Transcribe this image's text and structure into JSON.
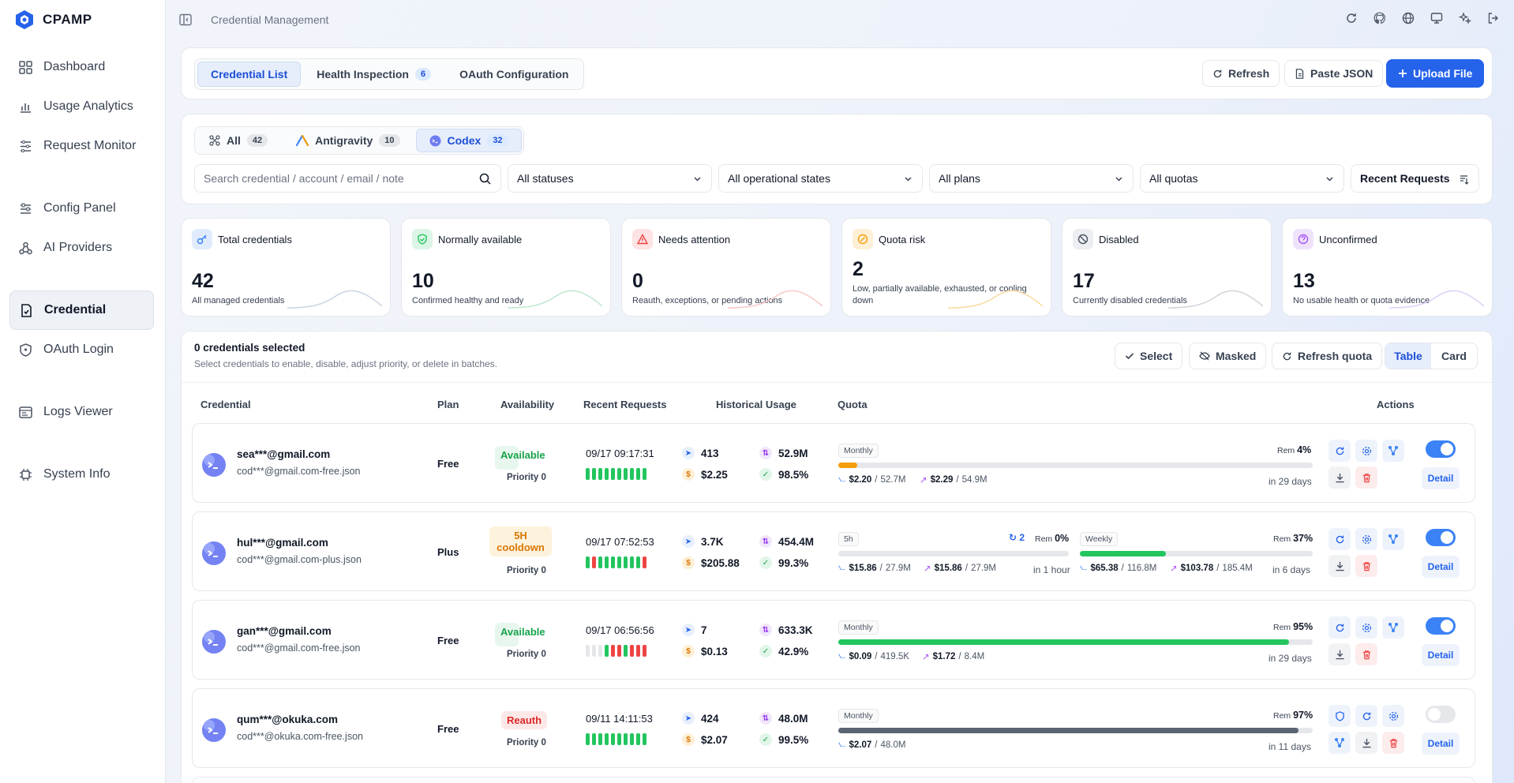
{
  "app": {
    "name": "CPAMP",
    "page_title": "Credential Management"
  },
  "sidebar": {
    "items": [
      {
        "label": "Dashboard"
      },
      {
        "label": "Usage Analytics"
      },
      {
        "label": "Request Monitor"
      },
      {
        "label": "Config Panel"
      },
      {
        "label": "AI Providers"
      },
      {
        "label": "Credential"
      },
      {
        "label": "OAuth Login"
      },
      {
        "label": "Logs Viewer"
      },
      {
        "label": "System Info"
      }
    ],
    "active": "Credential"
  },
  "tabs": [
    {
      "label": "Credential List",
      "active": true
    },
    {
      "label": "Health Inspection",
      "count": "6"
    },
    {
      "label": "OAuth Configuration"
    }
  ],
  "header_buttons": {
    "refresh": "Refresh",
    "paste_json": "Paste JSON",
    "upload": "Upload File"
  },
  "providers": [
    {
      "label": "All",
      "count": "42"
    },
    {
      "label": "Antigravity",
      "count": "10"
    },
    {
      "label": "Codex",
      "count": "32",
      "active": true
    }
  ],
  "filters": {
    "search_placeholder": "Search credential / account / email / note",
    "status": "All statuses",
    "op_state": "All operational states",
    "plans": "All plans",
    "quotas": "All quotas",
    "sort": "Recent Requests"
  },
  "stats": [
    {
      "label": "Total credentials",
      "value": "42",
      "sub": "All managed credentials",
      "color": "#3b82f6"
    },
    {
      "label": "Normally available",
      "value": "10",
      "sub": "Confirmed healthy and ready",
      "color": "#22c55e"
    },
    {
      "label": "Needs attention",
      "value": "0",
      "sub": "Reauth, exceptions, or pending actions",
      "color": "#ef4444"
    },
    {
      "label": "Quota risk",
      "value": "2",
      "sub": "Low, partially available, exhausted, or cooling down",
      "color": "#f59e0b"
    },
    {
      "label": "Disabled",
      "value": "17",
      "sub": "Currently disabled credentials",
      "color": "#6b7280"
    },
    {
      "label": "Unconfirmed",
      "value": "13",
      "sub": "No usable health or quota evidence",
      "color": "#a855f7"
    }
  ],
  "selection": {
    "title": "0 credentials selected",
    "subtitle": "Select credentials to enable, disable, adjust priority, or delete in batches.",
    "select": "Select",
    "masked": "Masked",
    "refresh_quota": "Refresh quota",
    "view_table": "Table",
    "view_card": "Card"
  },
  "table": {
    "headers": [
      "Credential",
      "Plan",
      "Availability",
      "Recent Requests",
      "Historical Usage",
      "Quota",
      "Actions"
    ]
  },
  "rows": [
    {
      "email": "sea***@gmail.com",
      "file": "cod***@gmail.com-free.json",
      "plan": "Free",
      "status": "Available",
      "priority": "Priority 0",
      "time": "09/17 09:17:31",
      "requests": "413",
      "cost": "$2.25",
      "tokens": "52.9M",
      "success": "98.5%",
      "q1_label": "Monthly",
      "q1_rem": "4%",
      "q1_a": "$2.20",
      "q1_a2": "52.7M",
      "q1_b": "$2.29",
      "q1_b2": "54.9M",
      "q1_reset": "in 29 days",
      "enabled": true,
      "detail": "Detail"
    },
    {
      "email": "hul***@gmail.com",
      "file": "cod***@gmail.com-plus.json",
      "plan": "Plus",
      "status": "5H cooldown",
      "priority": "Priority 0",
      "time": "09/17 07:52:53",
      "requests": "3.7K",
      "cost": "$205.88",
      "tokens": "454.4M",
      "success": "99.3%",
      "q1_label": "5h",
      "q1_retry": "2",
      "q1_rem": "0%",
      "q1_a": "$15.86",
      "q1_a2": "27.9M",
      "q1_b": "$15.86",
      "q1_b2": "27.9M",
      "q1_reset": "in 1 hour",
      "q2_label": "Weekly",
      "q2_rem": "37%",
      "q2_a": "$65.38",
      "q2_a2": "116.8M",
      "q2_b": "$103.78",
      "q2_b2": "185.4M",
      "q2_reset": "in 6 days",
      "enabled": true,
      "detail": "Detail"
    },
    {
      "email": "gan***@gmail.com",
      "file": "cod***@gmail.com-free.json",
      "plan": "Free",
      "status": "Available",
      "priority": "Priority 0",
      "time": "09/17 06:56:56",
      "requests": "7",
      "cost": "$0.13",
      "tokens": "633.3K",
      "success": "42.9%",
      "q1_label": "Monthly",
      "q1_rem": "95%",
      "q1_a": "$0.09",
      "q1_a2": "419.5K",
      "q1_b": "$1.72",
      "q1_b2": "8.4M",
      "q1_reset": "in 29 days",
      "enabled": true,
      "detail": "Detail"
    },
    {
      "email": "qum***@okuka.com",
      "file": "cod***@okuka.com-free.json",
      "plan": "Free",
      "status": "Reauth",
      "priority": "Priority 0",
      "time": "09/11 14:11:53",
      "requests": "424",
      "cost": "$2.07",
      "tokens": "48.0M",
      "success": "99.5%",
      "q1_label": "Monthly",
      "q1_rem": "97%",
      "q1_a": "$2.07",
      "q1_a2": "48.0M",
      "q1_reset": "in 11 days",
      "enabled": false,
      "detail": "Detail"
    }
  ],
  "quota_fill": [
    0.04,
    0.0,
    0.95,
    0.97
  ],
  "quota2_fill": 0.37,
  "colors": {
    "accent": "#2563eb",
    "green": "#22c55e",
    "red": "#ef4444",
    "orange": "#f59e0b"
  }
}
